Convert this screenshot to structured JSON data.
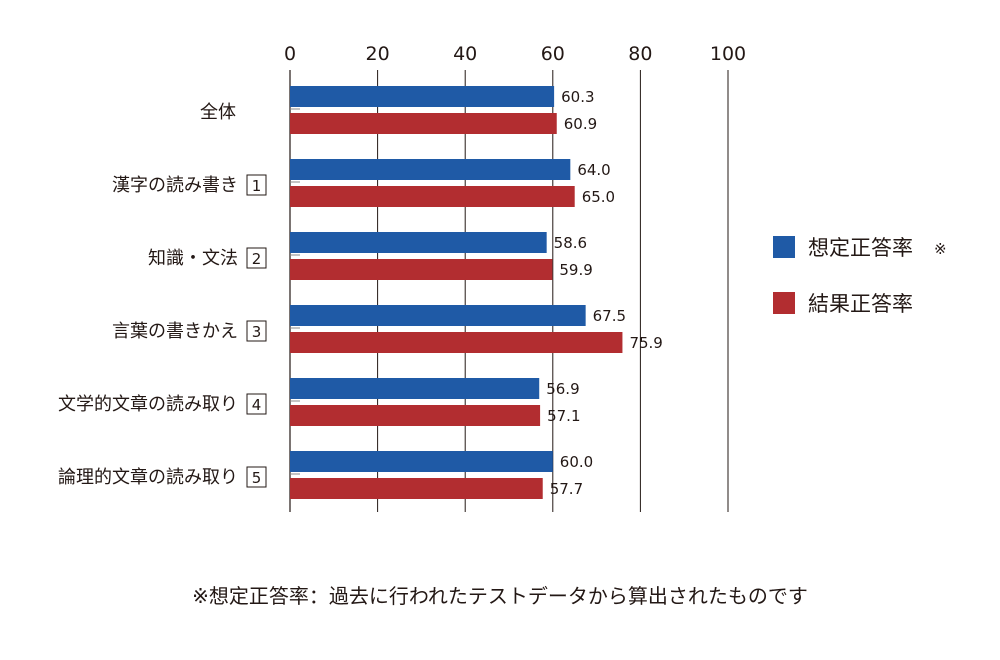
{
  "chart_data": {
    "type": "bar",
    "orientation": "horizontal",
    "xlim": [
      0,
      100
    ],
    "xticks": [
      0,
      20,
      40,
      60,
      80,
      100
    ],
    "categories": [
      {
        "label": "全体",
        "number": ""
      },
      {
        "label": "漢字の読み書き",
        "number": "1"
      },
      {
        "label": "知識・文法",
        "number": "2"
      },
      {
        "label": "言葉の書きかえ",
        "number": "3"
      },
      {
        "label": "文学的文章の読み取り",
        "number": "4"
      },
      {
        "label": "論理的文章の読み取り",
        "number": "5"
      }
    ],
    "series": [
      {
        "name": "想定正答率",
        "mark": "※",
        "color": "#1f5aa6",
        "values": [
          60.3,
          64.0,
          58.6,
          67.5,
          56.9,
          60.0
        ],
        "labels": [
          "60.3",
          "64.0",
          "58.6",
          "67.5",
          "56.9",
          "60.0"
        ]
      },
      {
        "name": "結果正答率",
        "mark": "",
        "color": "#b22d30",
        "values": [
          60.9,
          65.0,
          59.9,
          75.9,
          57.1,
          57.7
        ],
        "labels": [
          "60.9",
          "65.0",
          "59.9",
          "75.9",
          "57.1",
          "57.7"
        ]
      }
    ],
    "grid": true,
    "legend_position": "right"
  },
  "footnote": "※想定正答率：過去に行われたテストデータから算出されたものです"
}
